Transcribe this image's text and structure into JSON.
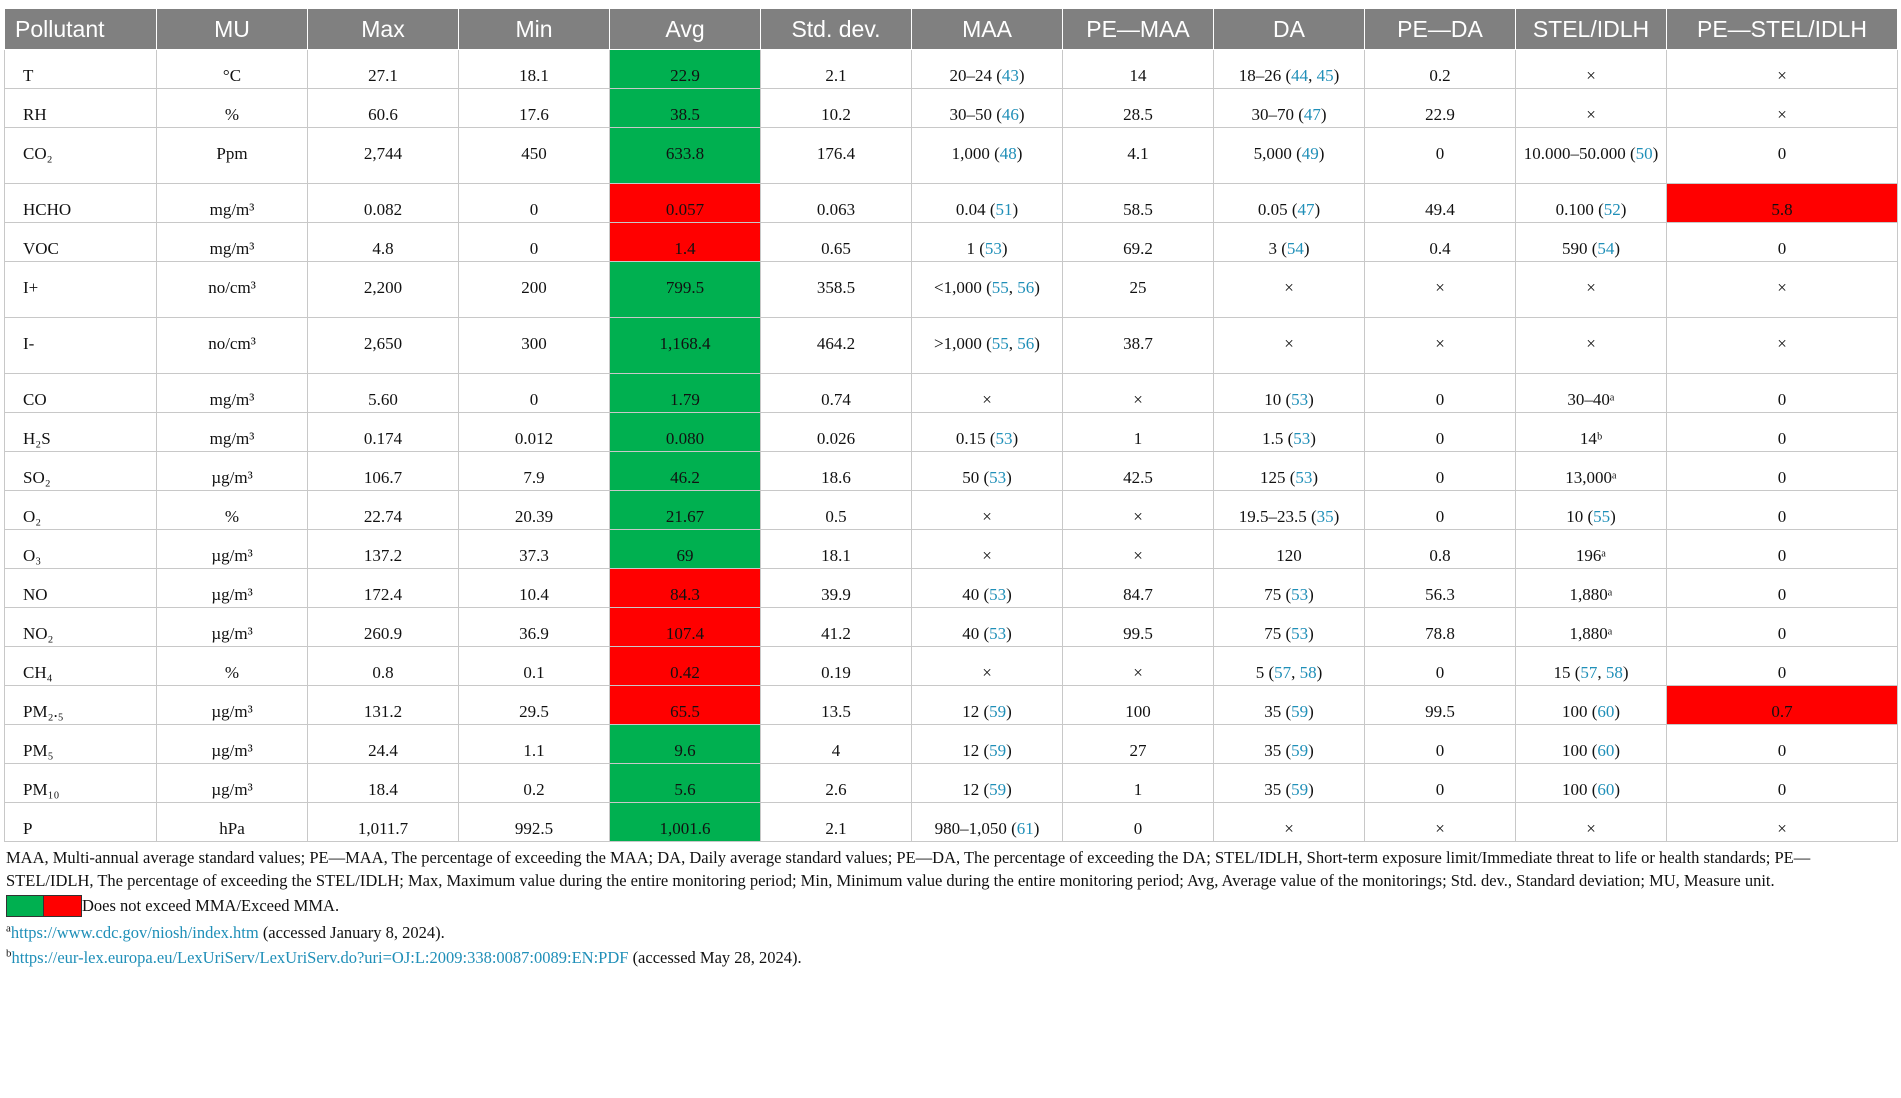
{
  "columns": [
    "Pollutant",
    "MU",
    "Max",
    "Min",
    "Avg",
    "Std. dev.",
    "MAA",
    "PE—MAA",
    "DA",
    "PE—DA",
    "STEL/IDLH",
    "PE—STEL/IDLH"
  ],
  "rows": [
    {
      "pollutant": "T",
      "mu": "°C",
      "max": "27.1",
      "min": "18.1",
      "avg": "22.9",
      "avg_status": "green",
      "std": "2.1",
      "maa": "20–24",
      "maa_refs": "43",
      "pe_maa": "14",
      "da": "18–26",
      "da_refs": "44, 45",
      "pe_da": "0.2",
      "stel": "×",
      "stel_refs": "",
      "pe_stel": "×",
      "pe_stel_status": ""
    },
    {
      "pollutant": "RH",
      "mu": "%",
      "max": "60.6",
      "min": "17.6",
      "avg": "38.5",
      "avg_status": "green",
      "std": "10.2",
      "maa": "30–50",
      "maa_refs": "46",
      "pe_maa": "28.5",
      "da": "30–70",
      "da_refs": "47",
      "pe_da": "22.9",
      "stel": "×",
      "stel_refs": "",
      "pe_stel": "×",
      "pe_stel_status": ""
    },
    {
      "pollutant": "CO₂",
      "mu": "Ppm",
      "max": "2,744",
      "min": "450",
      "avg": "633.8",
      "avg_status": "green",
      "std": "176.4",
      "maa": "1,000",
      "maa_refs": "48",
      "pe_maa": "4.1",
      "da": "5,000",
      "da_refs": "49",
      "pe_da": "0",
      "stel": "10.000–50.000",
      "stel_refs": "50",
      "pe_stel": "0",
      "pe_stel_status": ""
    },
    {
      "pollutant": "HCHO",
      "mu": "mg/m³",
      "max": "0.082",
      "min": "0",
      "avg": "0.057",
      "avg_status": "red",
      "std": "0.063",
      "maa": "0.04",
      "maa_refs": "51",
      "pe_maa": "58.5",
      "da": "0.05",
      "da_refs": "47",
      "pe_da": "49.4",
      "stel": "0.100",
      "stel_refs": "52",
      "pe_stel": "5.8",
      "pe_stel_status": "red"
    },
    {
      "pollutant": "VOC",
      "mu": "mg/m³",
      "max": "4.8",
      "min": "0",
      "avg": "1.4",
      "avg_status": "red",
      "std": "0.65",
      "maa": "1",
      "maa_refs": "53",
      "pe_maa": "69.2",
      "da": "3",
      "da_refs": "54",
      "pe_da": "0.4",
      "stel": "590",
      "stel_refs": "54",
      "pe_stel": "0",
      "pe_stel_status": ""
    },
    {
      "pollutant": "I+",
      "mu": "no/cm³",
      "max": "2,200",
      "min": "200",
      "avg": "799.5",
      "avg_status": "green",
      "std": "358.5",
      "maa": "<1,000",
      "maa_refs": "55, 56",
      "pe_maa": "25",
      "da": "×",
      "da_refs": "",
      "pe_da": "×",
      "stel": "×",
      "stel_refs": "",
      "pe_stel": "×",
      "pe_stel_status": ""
    },
    {
      "pollutant": "I-",
      "mu": "no/cm³",
      "max": "2,650",
      "min": "300",
      "avg": "1,168.4",
      "avg_status": "green",
      "std": "464.2",
      "maa": ">1,000",
      "maa_refs": "55, 56",
      "pe_maa": "38.7",
      "da": "×",
      "da_refs": "",
      "pe_da": "×",
      "stel": "×",
      "stel_refs": "",
      "pe_stel": "×",
      "pe_stel_status": ""
    },
    {
      "pollutant": "CO",
      "mu": "mg/m³",
      "max": "5.60",
      "min": "0",
      "avg": "1.79",
      "avg_status": "green",
      "std": "0.74",
      "maa": "×",
      "maa_refs": "",
      "pe_maa": "×",
      "da": "10",
      "da_refs": "53",
      "pe_da": "0",
      "stel": "30–40ᵃ",
      "stel_refs": "",
      "pe_stel": "0",
      "pe_stel_status": ""
    },
    {
      "pollutant": "H₂S",
      "mu": "mg/m³",
      "max": "0.174",
      "min": "0.012",
      "avg": "0.080",
      "avg_status": "green",
      "std": "0.026",
      "maa": "0.15",
      "maa_refs": "53",
      "pe_maa": "1",
      "da": "1.5",
      "da_refs": "53",
      "pe_da": "0",
      "stel": "14ᵇ",
      "stel_refs": "",
      "pe_stel": "0",
      "pe_stel_status": ""
    },
    {
      "pollutant": "SO₂",
      "mu": "µg/m³",
      "max": "106.7",
      "min": "7.9",
      "avg": "46.2",
      "avg_status": "green",
      "std": "18.6",
      "maa": "50",
      "maa_refs": "53",
      "pe_maa": "42.5",
      "da": "125",
      "da_refs": "53",
      "pe_da": "0",
      "stel": "13,000ᵃ",
      "stel_refs": "",
      "pe_stel": "0",
      "pe_stel_status": ""
    },
    {
      "pollutant": "O₂",
      "mu": "%",
      "max": "22.74",
      "min": "20.39",
      "avg": "21.67",
      "avg_status": "green",
      "std": "0.5",
      "maa": "×",
      "maa_refs": "",
      "pe_maa": "×",
      "da": "19.5–23.5",
      "da_refs": "35",
      "pe_da": "0",
      "stel": "10",
      "stel_refs": "55",
      "pe_stel": "0",
      "pe_stel_status": ""
    },
    {
      "pollutant": "O₃",
      "mu": "µg/m³",
      "max": "137.2",
      "min": "37.3",
      "avg": "69",
      "avg_status": "green",
      "std": "18.1",
      "maa": "×",
      "maa_refs": "",
      "pe_maa": "×",
      "da": "120",
      "da_refs": "",
      "pe_da": "0.8",
      "stel": "196ᵃ",
      "stel_refs": "",
      "pe_stel": "0",
      "pe_stel_status": ""
    },
    {
      "pollutant": "NO",
      "mu": "µg/m³",
      "max": "172.4",
      "min": "10.4",
      "avg": "84.3",
      "avg_status": "red",
      "std": "39.9",
      "maa": "40",
      "maa_refs": "53",
      "pe_maa": "84.7",
      "da": "75",
      "da_refs": "53",
      "pe_da": "56.3",
      "stel": "1,880ᵃ",
      "stel_refs": "",
      "pe_stel": "0",
      "pe_stel_status": ""
    },
    {
      "pollutant": "NO₂",
      "mu": "µg/m³",
      "max": "260.9",
      "min": "36.9",
      "avg": "107.4",
      "avg_status": "red",
      "std": "41.2",
      "maa": "40",
      "maa_refs": "53",
      "pe_maa": "99.5",
      "da": "75",
      "da_refs": "53",
      "pe_da": "78.8",
      "stel": "1,880ᵃ",
      "stel_refs": "",
      "pe_stel": "0",
      "pe_stel_status": ""
    },
    {
      "pollutant": "CH₄",
      "mu": "%",
      "max": "0.8",
      "min": "0.1",
      "avg": "0.42",
      "avg_status": "red",
      "std": "0.19",
      "maa": "×",
      "maa_refs": "",
      "pe_maa": "×",
      "da": "5",
      "da_refs": "57, 58",
      "pe_da": "0",
      "stel": "15",
      "stel_refs": "57, 58",
      "pe_stel": "0",
      "pe_stel_status": ""
    },
    {
      "pollutant": "PM₂.₅",
      "mu": "µg/m³",
      "max": "131.2",
      "min": "29.5",
      "avg": "65.5",
      "avg_status": "red",
      "std": "13.5",
      "maa": "12",
      "maa_refs": "59",
      "pe_maa": "100",
      "da": "35",
      "da_refs": "59",
      "pe_da": "99.5",
      "stel": "100",
      "stel_refs": "60",
      "pe_stel": "0.7",
      "pe_stel_status": "red"
    },
    {
      "pollutant": "PM₅",
      "mu": "µg/m³",
      "max": "24.4",
      "min": "1.1",
      "avg": "9.6",
      "avg_status": "green",
      "std": "4",
      "maa": "12",
      "maa_refs": "59",
      "pe_maa": "27",
      "da": "35",
      "da_refs": "59",
      "pe_da": "0",
      "stel": "100",
      "stel_refs": "60",
      "pe_stel": "0",
      "pe_stel_status": ""
    },
    {
      "pollutant": "PM₁₀",
      "mu": "µg/m³",
      "max": "18.4",
      "min": "0.2",
      "avg": "5.6",
      "avg_status": "green",
      "std": "2.6",
      "maa": "12",
      "maa_refs": "59",
      "pe_maa": "1",
      "da": "35",
      "da_refs": "59",
      "pe_da": "0",
      "stel": "100",
      "stel_refs": "60",
      "pe_stel": "0",
      "pe_stel_status": ""
    },
    {
      "pollutant": "P",
      "mu": "hPa",
      "max": "1,011.7",
      "min": "992.5",
      "avg": "1,001.6",
      "avg_status": "green",
      "std": "2.1",
      "maa": "980–1,050",
      "maa_refs": "61",
      "pe_maa": "0",
      "da": "×",
      "da_refs": "",
      "pe_da": "×",
      "stel": "×",
      "stel_refs": "",
      "pe_stel": "×",
      "pe_stel_status": ""
    }
  ],
  "footer": {
    "abbreviations": "MAA, Multi-annual average standard values; PE—MAA, The percentage of exceeding the MAA; DA, Daily average standard values; PE—DA, The percentage of exceeding the DA; STEL/IDLH, Short-term exposure limit/Immediate threat to life or health standards; PE—STEL/IDLH, The percentage of exceeding the STEL/IDLH; Max, Maximum value during the entire monitoring period; Min, Minimum value during the entire monitoring period; Avg, Average value of the monitorings; Std. dev., Standard deviation; MU, Measure unit.",
    "legend_text": "Does not exceed MMA/Exceed MMA.",
    "legend_colors": {
      "green": "#00b050",
      "red": "#ff0000"
    },
    "footnote_a_mark": "a",
    "footnote_a_link": "https://www.cdc.gov/niosh/index.htm",
    "footnote_a_text": " (accessed January 8, 2024).",
    "footnote_b_mark": "b",
    "footnote_b_link": "https://eur-lex.europa.eu/LexUriServ/LexUriServ.do?uri=OJ:L:2009:338:0087:0089:EN:PDF",
    "footnote_b_text": " (accessed May 28, 2024)."
  }
}
